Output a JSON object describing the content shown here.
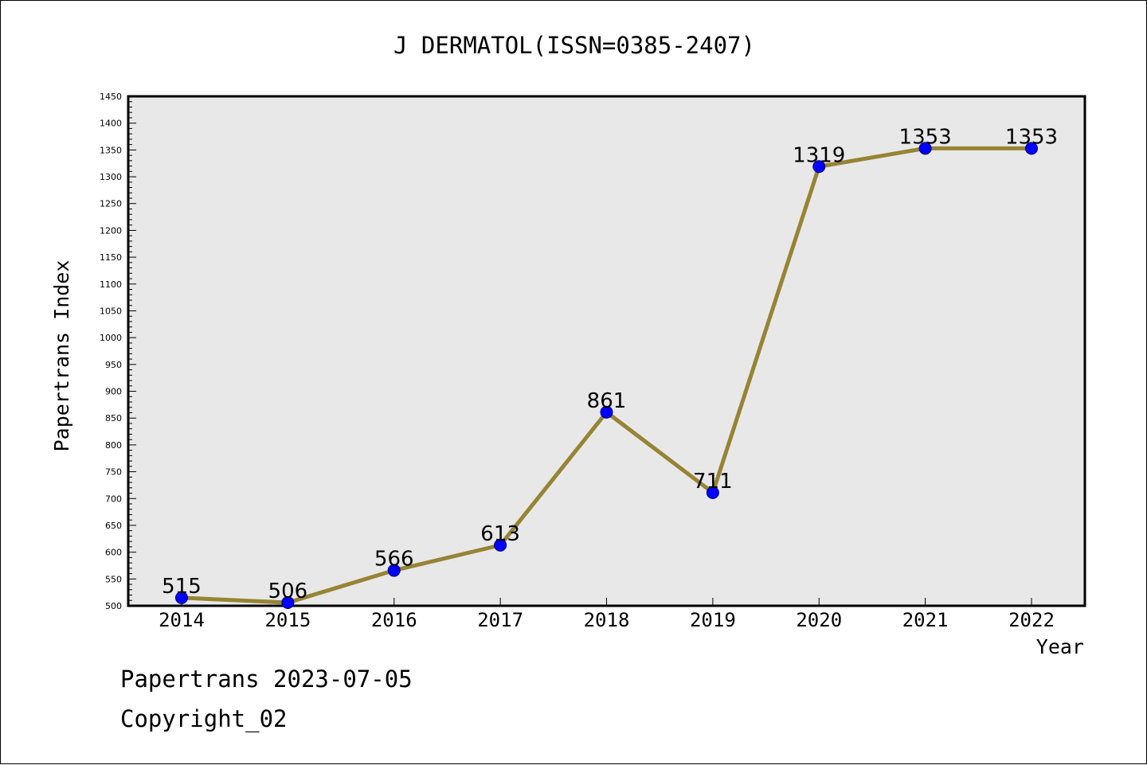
{
  "chart_data": {
    "type": "line",
    "title": "J DERMATOL(ISSN=0385-2407)",
    "xlabel": "Year",
    "ylabel": "Papertrans Index",
    "categories": [
      "2014",
      "2015",
      "2016",
      "2017",
      "2018",
      "2019",
      "2020",
      "2021",
      "2022"
    ],
    "series": [
      {
        "values": [
          515,
          506,
          566,
          613,
          861,
          711,
          1319,
          1353,
          1353
        ],
        "line_color": "#968434",
        "marker_color": "#0000ff"
      }
    ],
    "data_labels": [
      "515",
      "506",
      "566",
      "613",
      "861",
      "711",
      "1319",
      "1353",
      "1353"
    ],
    "ylim": [
      500,
      1450
    ],
    "y_ticks": [
      500,
      550,
      600,
      650,
      700,
      750,
      800,
      850,
      900,
      950,
      1000,
      1050,
      1100,
      1150,
      1200,
      1250,
      1300,
      1350,
      1400,
      1450
    ],
    "plot_background": "#e8e8e8",
    "grid": false,
    "legend": "none"
  },
  "footer": {
    "line1": "Papertrans 2023-07-05",
    "line2": "Copyright_02"
  }
}
